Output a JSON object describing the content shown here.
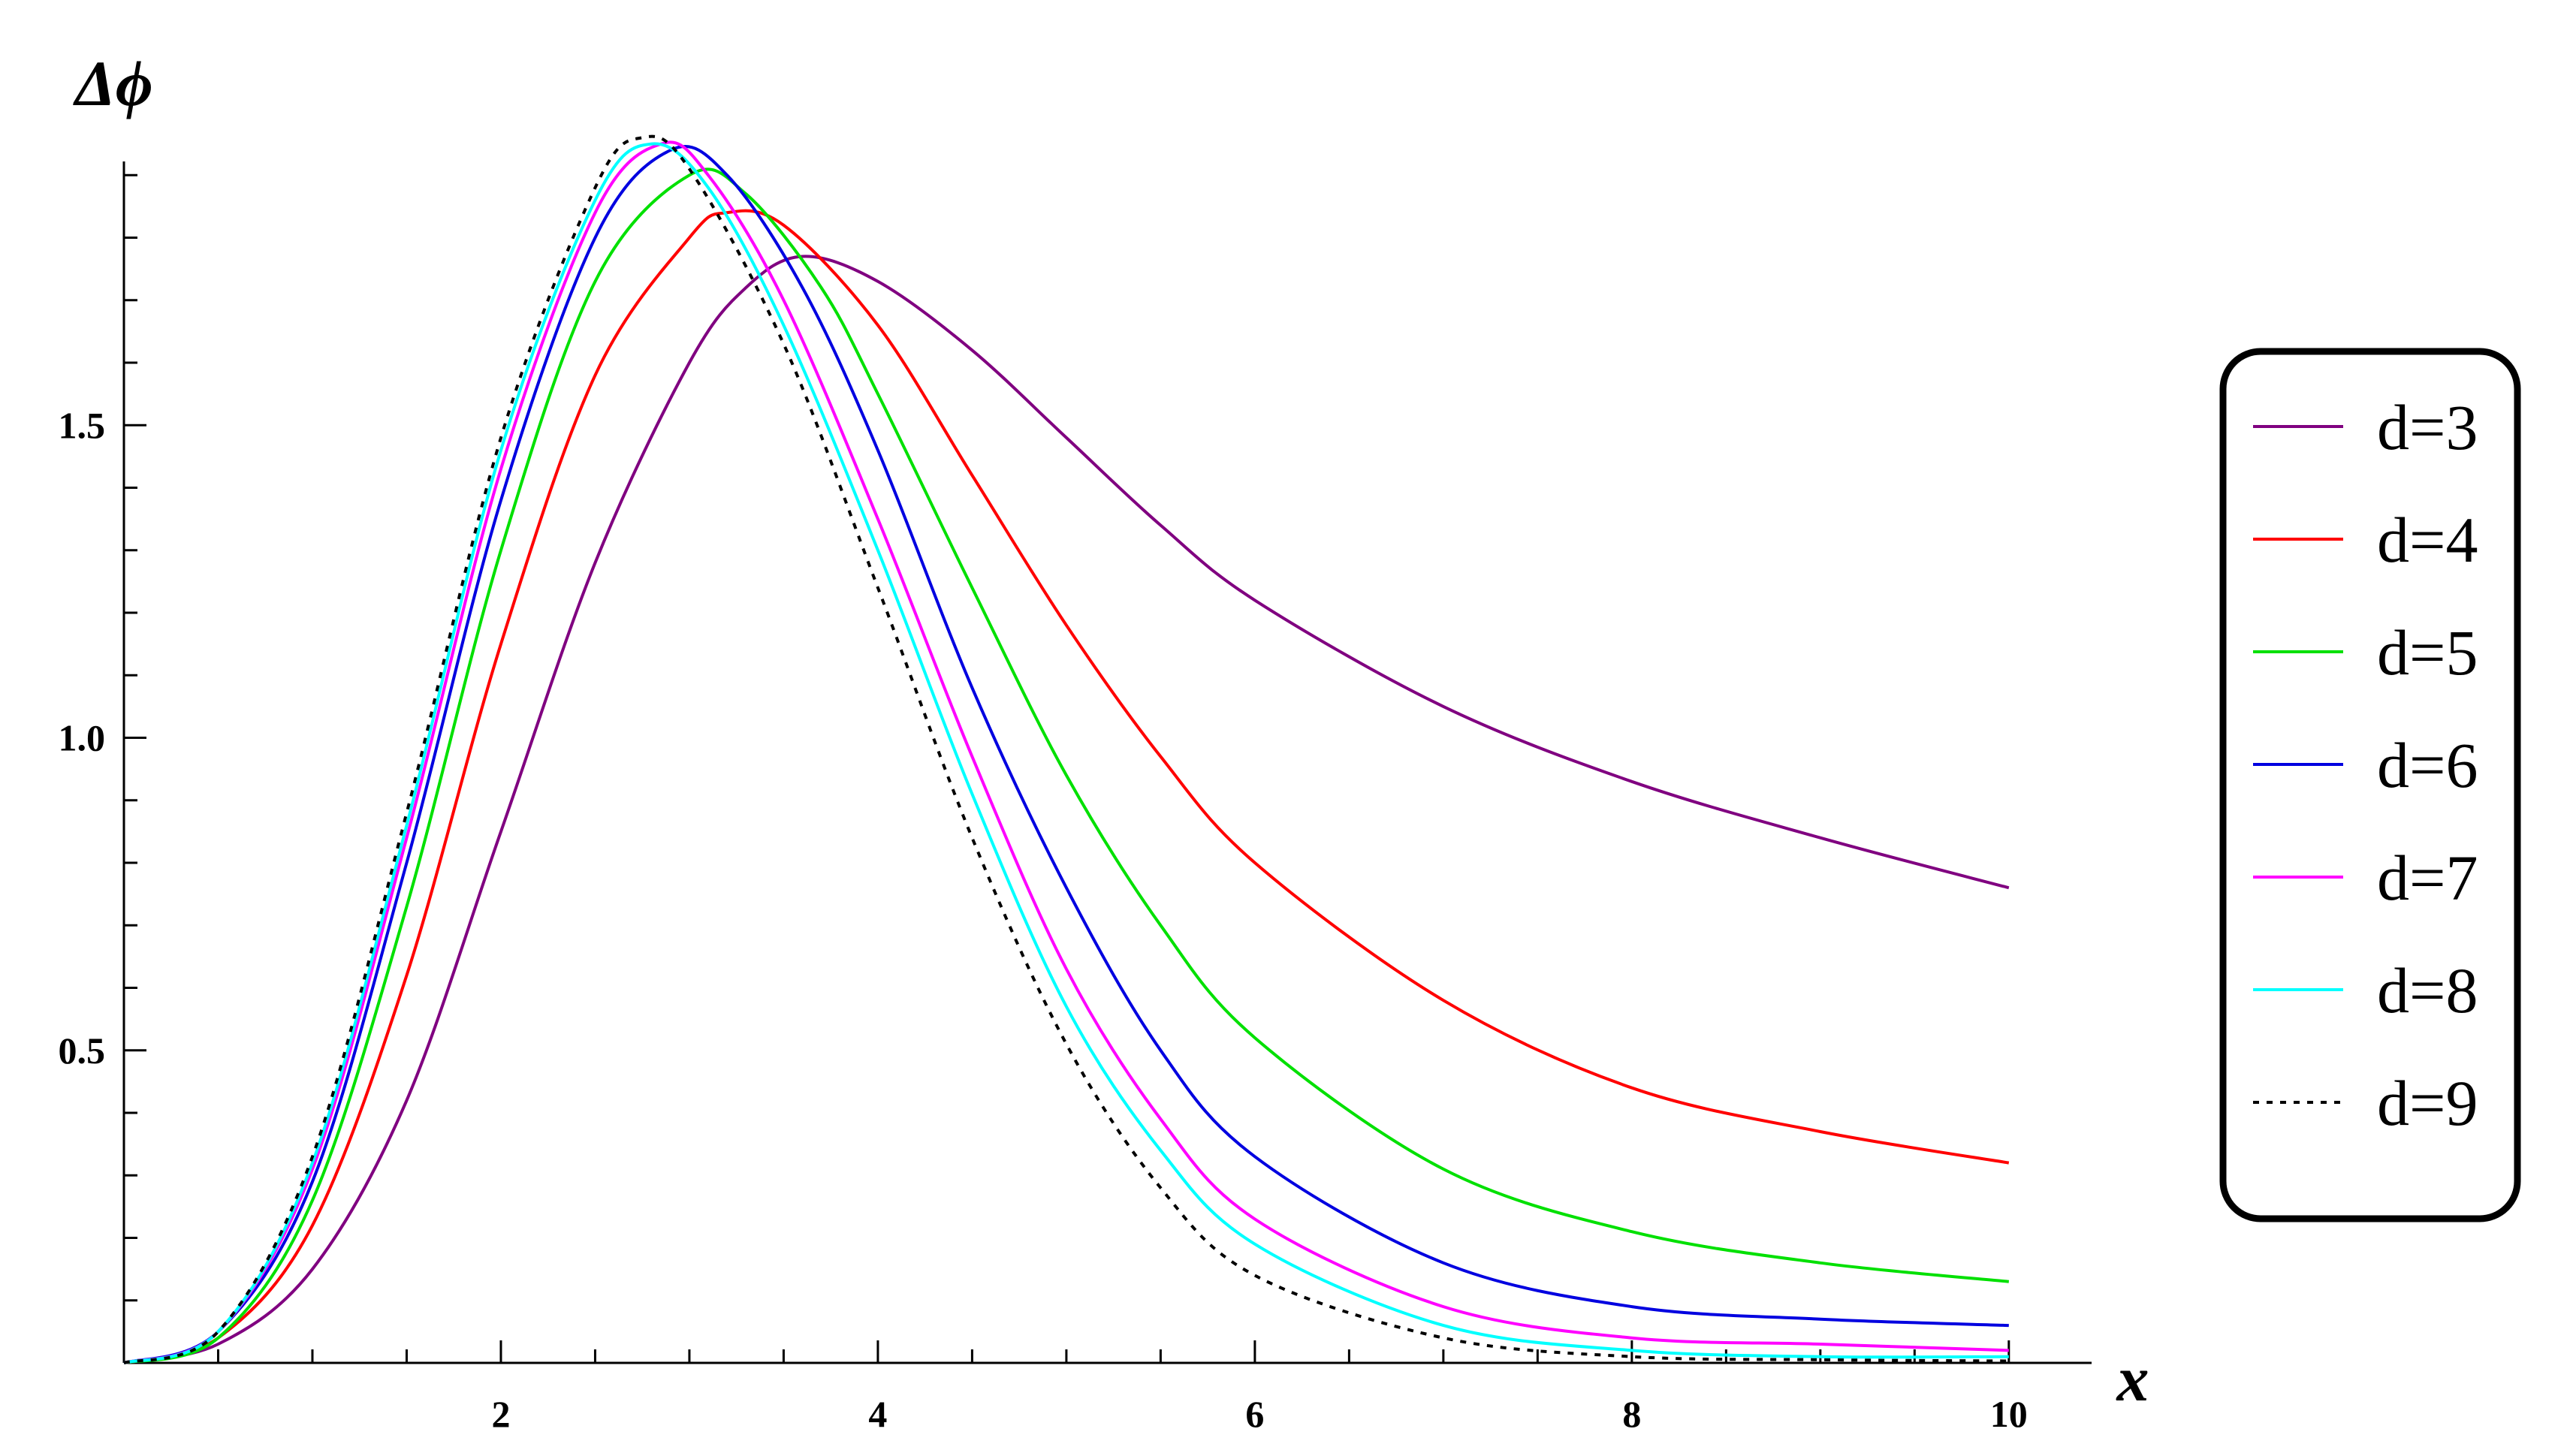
{
  "chart_data": {
    "type": "line",
    "xlabel": "x",
    "ylabel": "Δϕ",
    "xlim": [
      0,
      10.2
    ],
    "ylim": [
      0,
      1.97
    ],
    "x_ticks": [
      2,
      4,
      6,
      8,
      10
    ],
    "x_tick_labels": [
      "2",
      "4",
      "6",
      "8",
      "10"
    ],
    "y_ticks": [
      0.5,
      1.0,
      1.5
    ],
    "y_tick_labels": [
      "0.5",
      "1.0",
      "1.5"
    ],
    "grid": false,
    "legend_position": "right",
    "series": [
      {
        "name": "d=3",
        "color": "#800080",
        "dash": "solid",
        "points": [
          [
            0,
            0
          ],
          [
            0.5,
            0.03
          ],
          [
            1,
            0.15
          ],
          [
            1.5,
            0.42
          ],
          [
            2,
            0.85
          ],
          [
            2.5,
            1.28
          ],
          [
            3,
            1.6
          ],
          [
            3.3,
            1.72
          ],
          [
            3.6,
            1.77
          ],
          [
            4,
            1.73
          ],
          [
            4.5,
            1.62
          ],
          [
            5,
            1.48
          ],
          [
            5.5,
            1.34
          ],
          [
            6,
            1.22
          ],
          [
            7,
            1.05
          ],
          [
            8,
            0.93
          ],
          [
            9,
            0.84
          ],
          [
            10,
            0.76
          ]
        ]
      },
      {
        "name": "d=4",
        "color": "#ff0000",
        "dash": "solid",
        "points": [
          [
            0,
            0
          ],
          [
            0.5,
            0.04
          ],
          [
            1,
            0.22
          ],
          [
            1.5,
            0.62
          ],
          [
            2,
            1.15
          ],
          [
            2.5,
            1.58
          ],
          [
            3,
            1.8
          ],
          [
            3.2,
            1.84
          ],
          [
            3.5,
            1.82
          ],
          [
            4,
            1.66
          ],
          [
            4.5,
            1.42
          ],
          [
            5,
            1.18
          ],
          [
            5.5,
            0.97
          ],
          [
            6,
            0.8
          ],
          [
            7,
            0.58
          ],
          [
            8,
            0.44
          ],
          [
            9,
            0.37
          ],
          [
            10,
            0.32
          ]
        ]
      },
      {
        "name": "d=5",
        "color": "#00e000",
        "dash": "solid",
        "points": [
          [
            0,
            0
          ],
          [
            0.5,
            0.04
          ],
          [
            1,
            0.26
          ],
          [
            1.5,
            0.73
          ],
          [
            2,
            1.3
          ],
          [
            2.5,
            1.73
          ],
          [
            3,
            1.9
          ],
          [
            3.3,
            1.87
          ],
          [
            3.7,
            1.72
          ],
          [
            4,
            1.55
          ],
          [
            4.5,
            1.24
          ],
          [
            5,
            0.94
          ],
          [
            5.5,
            0.7
          ],
          [
            6,
            0.52
          ],
          [
            7,
            0.31
          ],
          [
            8,
            0.21
          ],
          [
            9,
            0.16
          ],
          [
            10,
            0.13
          ]
        ]
      },
      {
        "name": "d=6",
        "color": "#0000e0",
        "dash": "solid",
        "points": [
          [
            0,
            0
          ],
          [
            0.5,
            0.05
          ],
          [
            1,
            0.29
          ],
          [
            1.5,
            0.8
          ],
          [
            2,
            1.38
          ],
          [
            2.5,
            1.8
          ],
          [
            2.9,
            1.94
          ],
          [
            3.2,
            1.9
          ],
          [
            3.6,
            1.72
          ],
          [
            4,
            1.46
          ],
          [
            4.5,
            1.08
          ],
          [
            5,
            0.76
          ],
          [
            5.5,
            0.5
          ],
          [
            6,
            0.33
          ],
          [
            7,
            0.16
          ],
          [
            8,
            0.09
          ],
          [
            9,
            0.07
          ],
          [
            10,
            0.06
          ]
        ]
      },
      {
        "name": "d=7",
        "color": "#ff00ff",
        "dash": "solid",
        "points": [
          [
            0,
            0
          ],
          [
            0.5,
            0.05
          ],
          [
            1,
            0.31
          ],
          [
            1.5,
            0.84
          ],
          [
            2,
            1.43
          ],
          [
            2.5,
            1.84
          ],
          [
            2.85,
            1.95
          ],
          [
            3.1,
            1.9
          ],
          [
            3.5,
            1.7
          ],
          [
            4,
            1.35
          ],
          [
            4.5,
            0.97
          ],
          [
            5,
            0.63
          ],
          [
            5.5,
            0.39
          ],
          [
            6,
            0.23
          ],
          [
            7,
            0.09
          ],
          [
            8,
            0.04
          ],
          [
            9,
            0.03
          ],
          [
            10,
            0.02
          ]
        ]
      },
      {
        "name": "d=8",
        "color": "#00ffff",
        "dash": "solid",
        "points": [
          [
            0,
            0
          ],
          [
            0.5,
            0.05
          ],
          [
            1,
            0.32
          ],
          [
            1.5,
            0.86
          ],
          [
            2,
            1.46
          ],
          [
            2.5,
            1.86
          ],
          [
            2.8,
            1.95
          ],
          [
            3.1,
            1.88
          ],
          [
            3.5,
            1.66
          ],
          [
            4,
            1.3
          ],
          [
            4.5,
            0.91
          ],
          [
            5,
            0.57
          ],
          [
            5.5,
            0.34
          ],
          [
            6,
            0.19
          ],
          [
            7,
            0.06
          ],
          [
            8,
            0.02
          ],
          [
            9,
            0.01
          ],
          [
            10,
            0.01
          ]
        ]
      },
      {
        "name": "d=9",
        "color": "#000000",
        "dash": "dotted",
        "points": [
          [
            0,
            0
          ],
          [
            0.5,
            0.05
          ],
          [
            1,
            0.33
          ],
          [
            1.5,
            0.88
          ],
          [
            2,
            1.48
          ],
          [
            2.5,
            1.88
          ],
          [
            2.75,
            1.96
          ],
          [
            3,
            1.91
          ],
          [
            3.5,
            1.63
          ],
          [
            4,
            1.24
          ],
          [
            4.5,
            0.84
          ],
          [
            5,
            0.51
          ],
          [
            5.5,
            0.28
          ],
          [
            6,
            0.14
          ],
          [
            7,
            0.04
          ],
          [
            8,
            0.01
          ],
          [
            9,
            0.005
          ],
          [
            10,
            0.003
          ]
        ]
      }
    ]
  }
}
